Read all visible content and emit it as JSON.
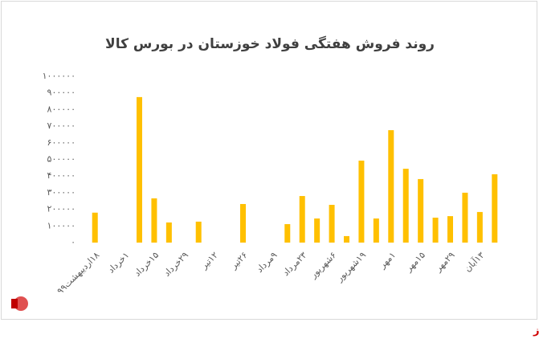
{
  "chart_data": {
    "type": "bar",
    "title": "روند فروش هفتگی فولاد خوزستان در بورس کالا",
    "categories": [
      "۱۸اردیبهشت۹۹",
      null,
      "۱خرداد",
      null,
      "۱۵خرداد",
      null,
      "۲۹خرداد",
      null,
      "۱۲تیر",
      null,
      "۲۶تیر",
      null,
      "۹مرداد",
      null,
      "۲۳مرداد",
      null,
      "۶شهریور",
      null,
      "۱۹شهریور",
      null,
      "۱مهر",
      null,
      "۱۵مهر",
      null,
      "۲۹مهر",
      null,
      "۱۳آبان",
      null
    ],
    "values": [
      180000,
      0,
      0,
      875000,
      266000,
      121000,
      0,
      126000,
      0,
      0,
      232000,
      0,
      0,
      111000,
      280000,
      145000,
      227000,
      39000,
      493000,
      145000,
      676000,
      444000,
      382000,
      150000,
      159000,
      300000,
      184000,
      411000
    ],
    "color": "#ffc000",
    "ylim": [
      0,
      1000000
    ],
    "yticks": [
      {
        "value": 0,
        "label": "۰"
      },
      {
        "value": 100000,
        "label": "۱۰۰۰۰۰"
      },
      {
        "value": 200000,
        "label": "۲۰۰۰۰۰"
      },
      {
        "value": 300000,
        "label": "۳۰۰۰۰۰"
      },
      {
        "value": 400000,
        "label": "۴۰۰۰۰۰"
      },
      {
        "value": 500000,
        "label": "۵۰۰۰۰۰"
      },
      {
        "value": 600000,
        "label": "۶۰۰۰۰۰"
      },
      {
        "value": 700000,
        "label": "۷۰۰۰۰۰"
      },
      {
        "value": 800000,
        "label": "۸۰۰۰۰۰"
      },
      {
        "value": 900000,
        "label": "۹۰۰۰۰۰"
      },
      {
        "value": 1000000,
        "label": "۱۰۰۰۰۰۰"
      }
    ],
    "grid": false
  },
  "source": "بورس نیوز"
}
